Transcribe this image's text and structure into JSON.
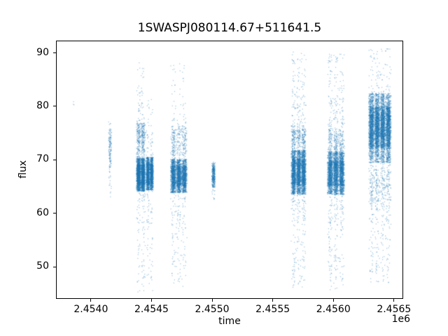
{
  "chart_data": {
    "type": "scatter",
    "title": "1SWASPJ080114.67+511641.5",
    "xlabel": "time",
    "ylabel": "flux",
    "x_offset_label": "1e6",
    "xlim": [
      2453712,
      2456576
    ],
    "ylim": [
      44.0,
      92.3
    ],
    "x_ticks": [
      2454000,
      2454500,
      2455000,
      2455500,
      2456000,
      2456500
    ],
    "x_tick_labels": [
      "2.4540",
      "2.4545",
      "2.4550",
      "2.4555",
      "2.4560",
      "2.4565"
    ],
    "y_ticks": [
      50,
      60,
      70,
      80,
      90
    ],
    "y_tick_labels": [
      "50",
      "60",
      "70",
      "80",
      "90"
    ],
    "grid": false,
    "legend": null,
    "marker": {
      "color": "#1f77b4",
      "size": 1.3,
      "alpha": 0.38
    },
    "clusters": [
      {
        "t": [
          2453832,
          2453852
        ],
        "columns": 1,
        "bands": [
          {
            "f": [
              80.2,
              81.2
            ],
            "n": 3
          }
        ]
      },
      {
        "t": [
          2454138,
          2454163
        ],
        "columns": 1,
        "bands": [
          {
            "f": [
              68.5,
              75.8
            ],
            "n": 110
          },
          {
            "f": [
              62.8,
              77.3
            ],
            "n": 48
          }
        ]
      },
      {
        "t": [
          2454368,
          2454442
        ],
        "columns": 2,
        "bands": [
          {
            "f": [
              64.2,
              70.4
            ],
            "n": 2600
          },
          {
            "f": [
              70.2,
              77.0
            ],
            "n": 300
          },
          {
            "f": [
              50.0,
              88.5
            ],
            "n": 250
          },
          {
            "f": [
              45.2,
              52.0
            ],
            "n": 22
          }
        ]
      },
      {
        "t": [
          2454448,
          2454510
        ],
        "columns": 2,
        "bands": [
          {
            "f": [
              64.4,
              70.6
            ],
            "n": 1900
          },
          {
            "f": [
              52.0,
              82.0
            ],
            "n": 130
          },
          {
            "f": [
              45.5,
              52.0
            ],
            "n": 14
          }
        ]
      },
      {
        "t": [
          2454652,
          2454788
        ],
        "columns": 3,
        "bands": [
          {
            "f": [
              63.9,
              70.2
            ],
            "n": 2900
          },
          {
            "f": [
              70.0,
              76.5
            ],
            "n": 240
          },
          {
            "f": [
              50.0,
              86.0
            ],
            "n": 280
          },
          {
            "f": [
              46.0,
              52.0
            ],
            "n": 28
          },
          {
            "f": [
              86.0,
              88.8
            ],
            "n": 10
          }
        ]
      },
      {
        "t": [
          2454993,
          2455022
        ],
        "columns": 1,
        "bands": [
          {
            "f": [
              64.9,
              69.6
            ],
            "n": 330
          },
          {
            "f": [
              62.5,
              70.5
            ],
            "n": 40
          }
        ]
      },
      {
        "t": [
          2455650,
          2455774
        ],
        "columns": 3,
        "bands": [
          {
            "f": [
              63.6,
              71.9
            ],
            "n": 3300
          },
          {
            "f": [
              71.5,
              76.5
            ],
            "n": 280
          },
          {
            "f": [
              50.0,
              90.4
            ],
            "n": 420
          },
          {
            "f": [
              45.8,
              52.0
            ],
            "n": 40
          }
        ]
      },
      {
        "t": [
          2455950,
          2456092
        ],
        "columns": 3,
        "bands": [
          {
            "f": [
              63.6,
              71.6
            ],
            "n": 3300
          },
          {
            "f": [
              71.0,
              76.0
            ],
            "n": 260
          },
          {
            "f": [
              50.0,
              90.0
            ],
            "n": 430
          },
          {
            "f": [
              45.5,
              52.0
            ],
            "n": 40
          }
        ]
      },
      {
        "t": [
          2456292,
          2456478
        ],
        "columns": 4,
        "bands": [
          {
            "f": [
              69.6,
              82.6
            ],
            "n": 3800
          },
          {
            "f": [
              72.5,
              80.2
            ],
            "n": 1800
          },
          {
            "f": [
              55.0,
              91.0
            ],
            "n": 430
          },
          {
            "f": [
              47.0,
              56.5
            ],
            "n": 90
          },
          {
            "f": [
              60.5,
              69.6
            ],
            "n": 260
          }
        ]
      }
    ]
  }
}
